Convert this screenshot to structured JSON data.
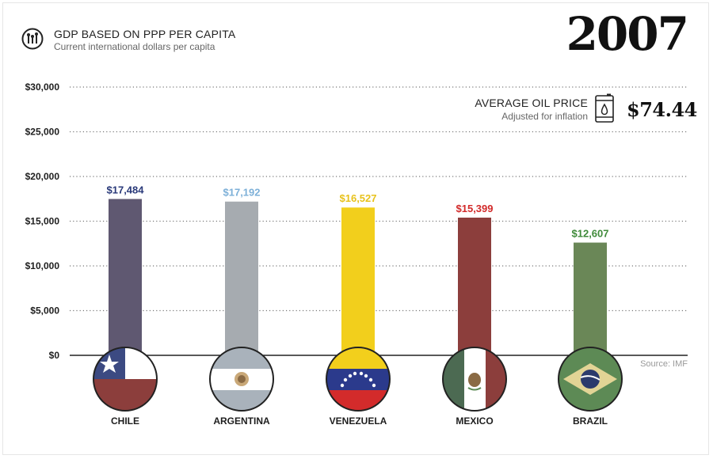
{
  "chart_data": {
    "type": "bar",
    "title": "GDP BASED ON PPP PER CAPITA",
    "subtitle": "Current international dollars per capita",
    "year": "2007",
    "categories": [
      "CHILE",
      "ARGENTINA",
      "VENEZUELA",
      "MEXICO",
      "BRAZIL"
    ],
    "values": [
      17484,
      17192,
      16527,
      15399,
      12607
    ],
    "value_labels": [
      "$17,484",
      "$17,192",
      "$16,527",
      "$15,399",
      "$12,607"
    ],
    "bar_colors": [
      "#5f5871",
      "#a6abb0",
      "#f2cf1c",
      "#8c3e3c",
      "#6a8757"
    ],
    "label_colors": [
      "#2a3a7a",
      "#7db0d8",
      "#e8c21c",
      "#d22a2a",
      "#3f8a3a"
    ],
    "ylim": [
      0,
      30000
    ],
    "yticks": [
      0,
      5000,
      10000,
      15000,
      20000,
      25000,
      30000
    ],
    "ytick_labels": [
      "$0",
      "$5,000",
      "$10,000",
      "$15,000",
      "$20,000",
      "$25,000",
      "$30,000"
    ],
    "grid": true,
    "annotation": {
      "label": "AVERAGE OIL PRICE",
      "sublabel": "Adjusted for inflation",
      "value": "$74.44",
      "icon": "oil-barrel-icon"
    },
    "source": "Source: IMF"
  },
  "header": {
    "icon": "ppp-icon"
  }
}
